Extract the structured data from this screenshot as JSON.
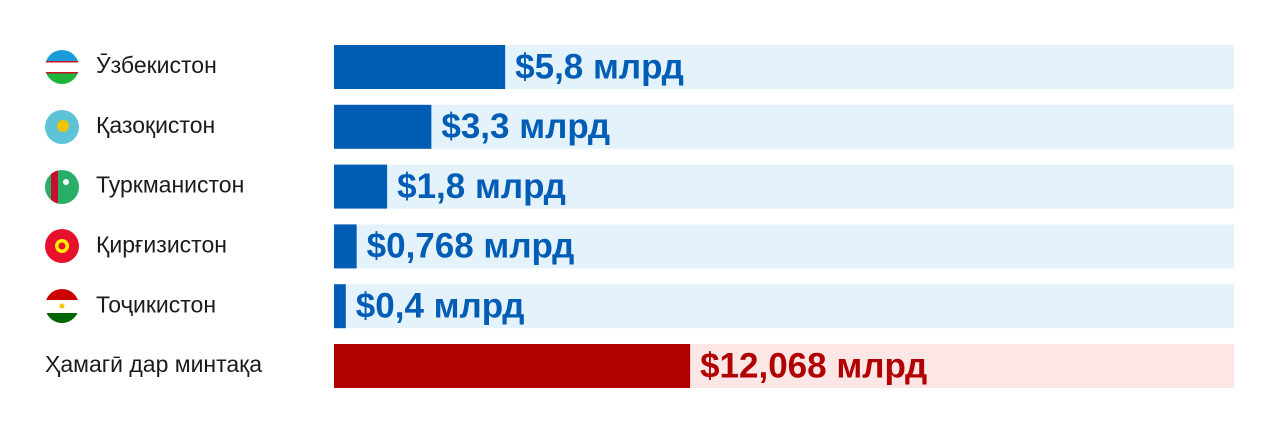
{
  "chart_data": {
    "type": "bar",
    "orientation": "horizontal",
    "categories": [
      "Ӯзбекистон",
      "Қазоқистон",
      "Туркманистон",
      "Қирғизистон",
      "Тоҷикистон",
      "Ҳамагӣ дар минтақа"
    ],
    "values": [
      5.8,
      3.3,
      1.8,
      0.768,
      0.4,
      12.068
    ],
    "value_labels": [
      "$5,8 млрд",
      "$3,3 млрд",
      "$1,8 млрд",
      "$0,768 млрд",
      "$0,4 млрд",
      "$12,068 млрд"
    ],
    "colors": [
      "#005db6",
      "#005db6",
      "#005db6",
      "#005db6",
      "#005db6",
      "#b00000"
    ],
    "track_colors": [
      "#e4f2fc",
      "#e4f2fc",
      "#e4f2fc",
      "#e4f2fc",
      "#e4f2fc",
      "#fde6e6"
    ],
    "xlim": [
      0,
      30.5
    ]
  }
}
